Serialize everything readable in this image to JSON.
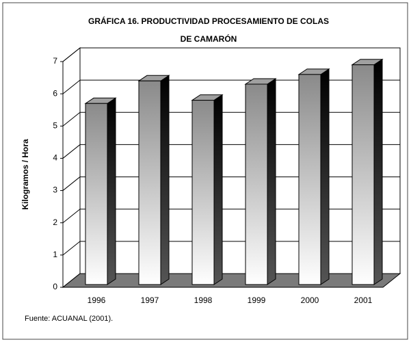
{
  "chart_data": {
    "type": "bar3d",
    "title": [
      "GRÁFICA 16. PRODUCTIVIDAD PROCESAMIENTO DE COLAS",
      "DE CAMARÓN"
    ],
    "y_label": "Kilogramos  / Hora",
    "categories": [
      "1996",
      "1997",
      "1998",
      "1999",
      "2000",
      "2001"
    ],
    "values": [
      5.7,
      6.4,
      5.8,
      6.3,
      6.6,
      6.9
    ],
    "ylim": [
      0,
      7
    ],
    "yticks": [
      0,
      1,
      2,
      3,
      4,
      5,
      6,
      7
    ],
    "grid": true,
    "color": "#a0a0a0",
    "source": "Fuente: ACUANAL (2001)."
  }
}
